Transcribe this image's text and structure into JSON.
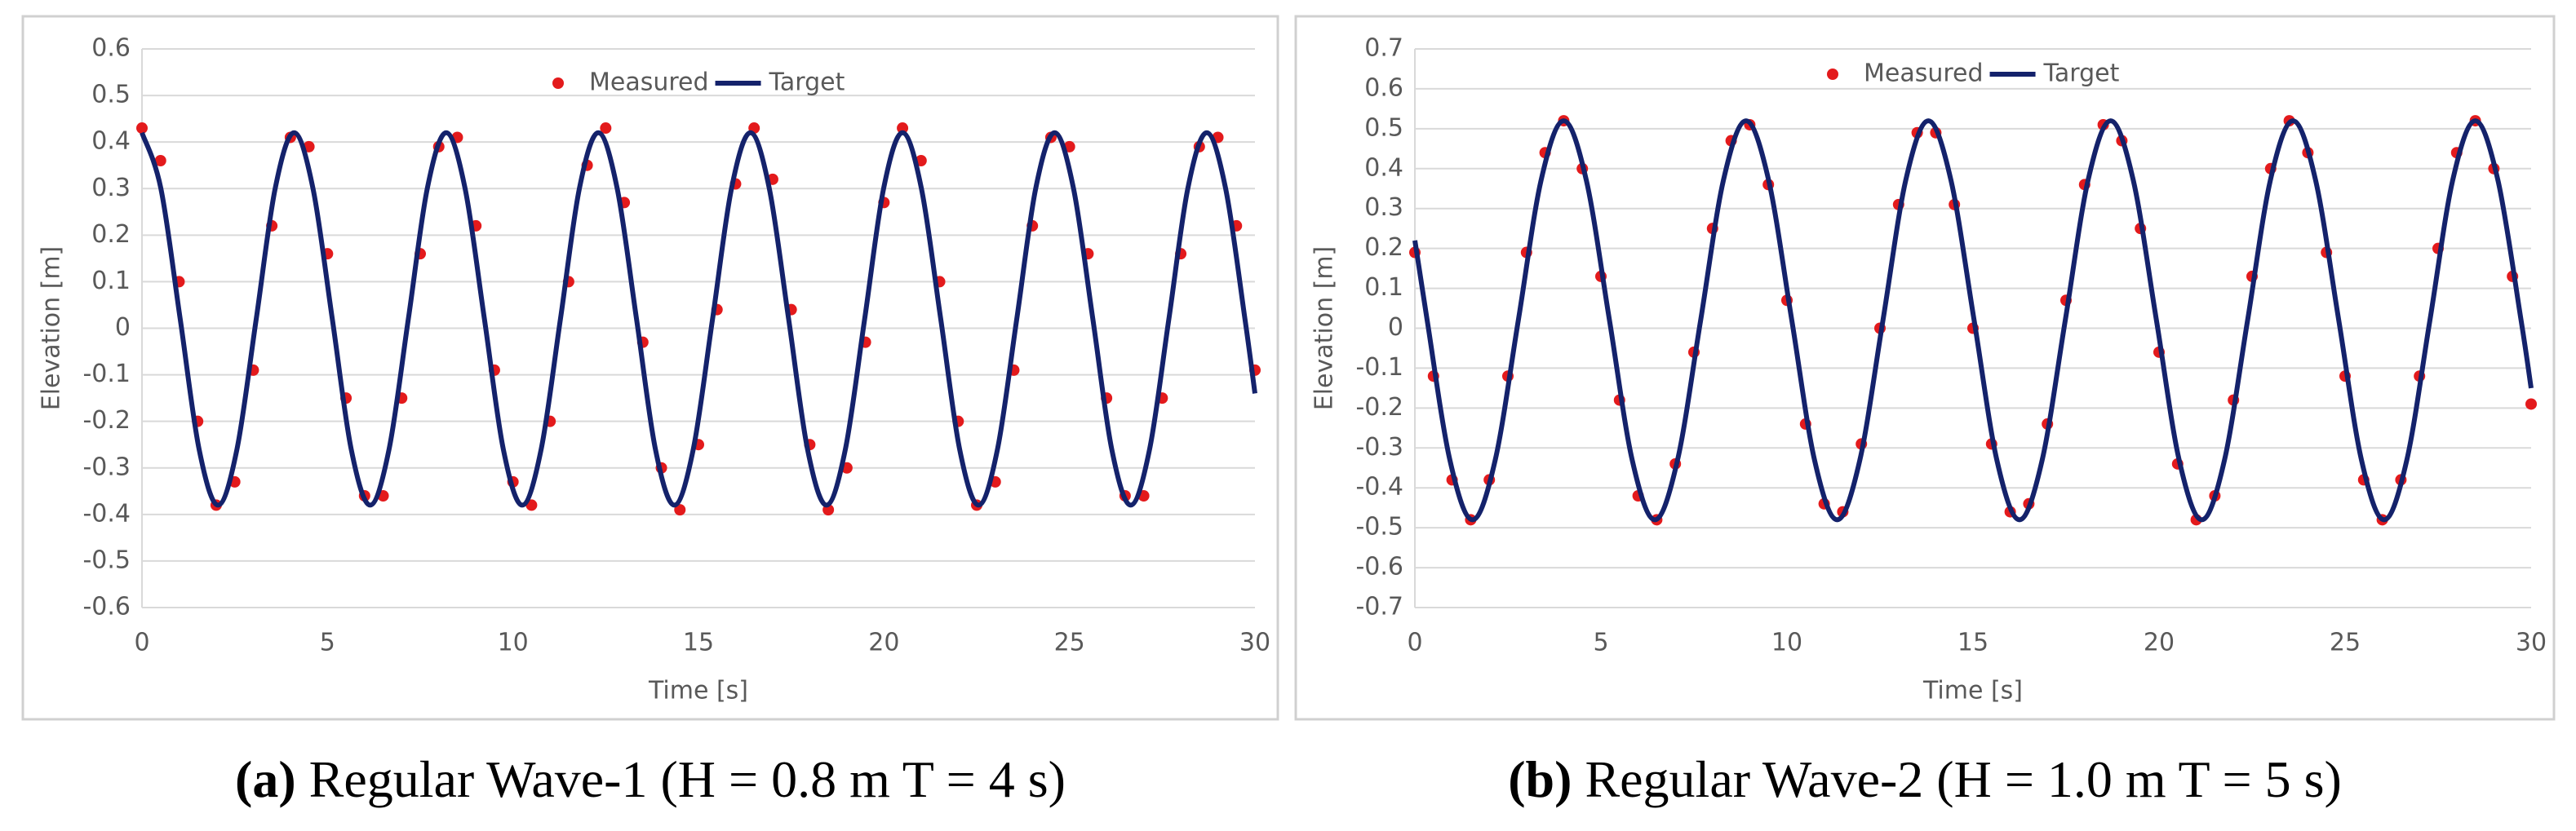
{
  "chart_data": [
    {
      "type": "line",
      "caption_label": "(a)",
      "caption": "Regular Wave-1 (H = 0.8 m T = 4 s)",
      "x_label": "Time [s]",
      "y_label": "Elevation [m]",
      "grid": true,
      "legend": "top",
      "xlim": [
        0,
        30
      ],
      "xticks": [
        0,
        5,
        10,
        15,
        20,
        25,
        30
      ],
      "ylim": [
        -0.6,
        0.6
      ],
      "yticks": [
        -0.6,
        -0.5,
        -0.4,
        -0.3,
        -0.2,
        -0.1,
        0,
        0.1,
        0.2,
        0.3,
        0.4,
        0.5,
        0.6
      ],
      "series": [
        {
          "name": "Measured",
          "color": "#e31a1c",
          "marker": "dot",
          "x": [
            0,
            0.5,
            1,
            1.5,
            2,
            2.5,
            3,
            3.5,
            4,
            4.5,
            5,
            5.5,
            6,
            6.5,
            7,
            7.5,
            8,
            8.5,
            9,
            9.5,
            10,
            10.5,
            11,
            11.5,
            12,
            12.5,
            13,
            13.5,
            14,
            14.5,
            15,
            15.5,
            16,
            16.5,
            17,
            17.5,
            18,
            18.5,
            19,
            19.5,
            20,
            20.5,
            21,
            21.5,
            22,
            22.5,
            23,
            23.5,
            24,
            24.5,
            25,
            25.5,
            26,
            26.5,
            27,
            27.5,
            28,
            28.5,
            29,
            29.5,
            30
          ],
          "values": [
            0.43,
            0.36,
            0.1,
            -0.2,
            -0.38,
            -0.33,
            -0.09,
            0.22,
            0.41,
            0.39,
            0.16,
            -0.15,
            -0.36,
            -0.36,
            -0.15,
            0.16,
            0.39,
            0.41,
            0.22,
            -0.09,
            -0.33,
            -0.38,
            -0.2,
            0.1,
            0.35,
            0.43,
            0.27,
            -0.03,
            -0.3,
            -0.39,
            -0.25,
            0.04,
            0.31,
            0.43,
            0.32,
            0.04,
            -0.25,
            -0.39,
            -0.3,
            -0.03,
            0.27,
            0.43,
            0.36,
            0.1,
            -0.2,
            -0.38,
            -0.33,
            -0.09,
            0.22,
            0.41,
            0.39,
            0.16,
            -0.15,
            -0.36,
            -0.36,
            -0.15,
            0.16,
            0.39,
            0.41,
            0.22,
            -0.09
          ]
        },
        {
          "name": "Target",
          "color": "#14226b",
          "marker": "line",
          "x": [
            0,
            0.51,
            1.03,
            1.54,
            2.05,
            2.56,
            3.08,
            3.59,
            4.1,
            4.61,
            5.13,
            5.64,
            6.15,
            6.66,
            7.18,
            7.69,
            8.2,
            8.71,
            9.23,
            9.74,
            10.25,
            10.76,
            11.28,
            11.79,
            12.3,
            12.81,
            13.33,
            13.84,
            14.35,
            14.86,
            15.38,
            15.89,
            16.4,
            16.91,
            17.43,
            17.94,
            18.45,
            18.96,
            19.48,
            19.99,
            20.5,
            21.01,
            21.53,
            22.04,
            22.55,
            23.06,
            23.58,
            24.09,
            24.6,
            25.11,
            25.63,
            26.14,
            26.65,
            27.16,
            27.68,
            28.19,
            28.7,
            29.21,
            29.73,
            30
          ],
          "values": [
            0.42,
            0.3,
            0.02,
            -0.26,
            -0.38,
            -0.26,
            0.02,
            0.3,
            0.42,
            0.3,
            0.02,
            -0.26,
            -0.38,
            -0.26,
            0.02,
            0.3,
            0.42,
            0.3,
            0.02,
            -0.26,
            -0.38,
            -0.26,
            0.02,
            0.3,
            0.42,
            0.3,
            0.02,
            -0.26,
            -0.38,
            -0.26,
            0.02,
            0.3,
            0.42,
            0.3,
            0.02,
            -0.26,
            -0.38,
            -0.26,
            0.02,
            0.3,
            0.42,
            0.3,
            0.02,
            -0.26,
            -0.38,
            -0.26,
            0.02,
            0.3,
            0.42,
            0.3,
            0.02,
            -0.26,
            -0.38,
            -0.26,
            0.02,
            0.3,
            0.42,
            0.3,
            0.02,
            -0.14
          ]
        }
      ]
    },
    {
      "type": "line",
      "caption_label": "(b)",
      "caption": "Regular Wave-2 (H = 1.0 m T = 5 s)",
      "x_label": "Time [s]",
      "y_label": "Elevation [m]",
      "grid": true,
      "legend": "top",
      "xlim": [
        0,
        30
      ],
      "xticks": [
        0,
        5,
        10,
        15,
        20,
        25,
        30
      ],
      "ylim": [
        -0.7,
        0.7
      ],
      "yticks": [
        -0.7,
        -0.6,
        -0.5,
        -0.4,
        -0.3,
        -0.2,
        -0.1,
        0,
        0.1,
        0.2,
        0.3,
        0.4,
        0.5,
        0.6,
        0.7
      ],
      "series": [
        {
          "name": "Measured",
          "color": "#e31a1c",
          "marker": "dot",
          "x": [
            0,
            0.5,
            1,
            1.5,
            2,
            2.5,
            3,
            3.5,
            4,
            4.5,
            5,
            5.5,
            6,
            6.5,
            7,
            7.5,
            8,
            8.5,
            9,
            9.5,
            10,
            10.5,
            11,
            11.5,
            12,
            12.5,
            13,
            13.5,
            14,
            14.5,
            15,
            15.5,
            16,
            16.5,
            17,
            17.5,
            18,
            18.5,
            19,
            19.5,
            20,
            20.5,
            21,
            21.5,
            22,
            22.5,
            23,
            23.5,
            24,
            24.5,
            25,
            25.5,
            26,
            26.5,
            27,
            27.5,
            28,
            28.5,
            29,
            29.5,
            30
          ],
          "values": [
            0.19,
            -0.12,
            -0.38,
            -0.48,
            -0.38,
            -0.12,
            0.19,
            0.44,
            0.52,
            0.4,
            0.13,
            -0.18,
            -0.42,
            -0.48,
            -0.34,
            -0.06,
            0.25,
            0.47,
            0.51,
            0.36,
            0.07,
            -0.24,
            -0.44,
            -0.46,
            -0.29,
            0,
            0.31,
            0.49,
            0.49,
            0.31,
            0,
            -0.29,
            -0.46,
            -0.44,
            -0.24,
            0.07,
            0.36,
            0.51,
            0.47,
            0.25,
            -0.06,
            -0.34,
            -0.48,
            -0.42,
            -0.18,
            0.13,
            0.4,
            0.52,
            0.44,
            0.19,
            -0.12,
            -0.38,
            -0.48,
            -0.38,
            -0.12,
            0.2,
            0.44,
            0.52,
            0.4,
            0.13,
            -0.19
          ]
        },
        {
          "name": "Target",
          "color": "#14226b",
          "marker": "line",
          "x": [
            0,
            0.33,
            0.94,
            1.55,
            2.16,
            2.78,
            3.39,
            4,
            4.61,
            5.23,
            5.84,
            6.45,
            7.06,
            7.68,
            8.29,
            8.9,
            9.51,
            10.13,
            10.74,
            11.35,
            11.96,
            12.58,
            13.19,
            13.8,
            14.41,
            15.03,
            15.64,
            16.25,
            16.86,
            17.48,
            18.09,
            18.7,
            19.31,
            19.93,
            20.54,
            21.15,
            21.76,
            22.38,
            22.99,
            23.6,
            24.21,
            24.83,
            25.44,
            26.05,
            26.66,
            27.28,
            27.89,
            28.5,
            29.11,
            29.73,
            30
          ],
          "values": [
            0.22,
            0.02,
            -0.33,
            -0.48,
            -0.33,
            0.02,
            0.37,
            0.52,
            0.37,
            0.02,
            -0.33,
            -0.48,
            -0.33,
            0.02,
            0.37,
            0.52,
            0.37,
            0.02,
            -0.33,
            -0.48,
            -0.33,
            0.02,
            0.37,
            0.52,
            0.37,
            0.02,
            -0.33,
            -0.48,
            -0.33,
            0.02,
            0.37,
            0.52,
            0.37,
            0.02,
            -0.33,
            -0.48,
            -0.33,
            0.02,
            0.37,
            0.52,
            0.37,
            0.02,
            -0.33,
            -0.48,
            -0.33,
            0.02,
            0.37,
            0.52,
            0.37,
            0.02,
            -0.15
          ]
        }
      ]
    }
  ]
}
